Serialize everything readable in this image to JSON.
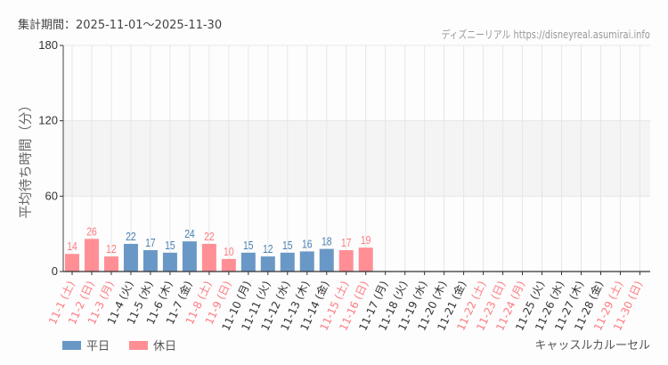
{
  "header": {
    "period": "集計期間：2025-11-01〜2025-11-30",
    "credit": "ディズニーリアル https://disneyreal.asumirai.info"
  },
  "legend": [
    {
      "label": "平日",
      "color": "#6a98c6"
    },
    {
      "label": "休日",
      "color": "#ff8f95"
    }
  ],
  "attraction": "キャッスルカルーセル",
  "colors": {
    "weekday": "#6a98c6",
    "holiday": "#ff8f95",
    "weekday_text": "#4a7fb5",
    "holiday_text": "#ff7a82",
    "band": "#f3f4f3",
    "grid": "#e6e6e6"
  },
  "chart_data": {
    "type": "bar",
    "title": "",
    "xlabel": "",
    "ylabel": "平均待ち時間（分）",
    "ylim": [
      0,
      180
    ],
    "yticks": [
      0,
      60,
      120,
      180
    ],
    "grid": true,
    "legend_position": "bottom-left",
    "categories": [
      "11-1 (土)",
      "11-2 (日)",
      "11-3 (月)",
      "11-4 (火)",
      "11-5 (水)",
      "11-6 (木)",
      "11-7 (金)",
      "11-8 (土)",
      "11-9 (日)",
      "11-10 (月)",
      "11-11 (火)",
      "11-12 (水)",
      "11-13 (木)",
      "11-14 (金)",
      "11-15 (土)",
      "11-16 (日)",
      "11-17 (月)",
      "11-18 (火)",
      "11-19 (水)",
      "11-20 (木)",
      "11-21 (金)",
      "11-22 (土)",
      "11-23 (日)",
      "11-24 (月)",
      "11-25 (火)",
      "11-26 (水)",
      "11-27 (木)",
      "11-28 (金)",
      "11-29 (土)",
      "11-30 (日)"
    ],
    "day_type": [
      "holiday",
      "holiday",
      "holiday",
      "weekday",
      "weekday",
      "weekday",
      "weekday",
      "holiday",
      "holiday",
      "weekday",
      "weekday",
      "weekday",
      "weekday",
      "weekday",
      "holiday",
      "holiday",
      "weekday",
      "weekday",
      "weekday",
      "weekday",
      "weekday",
      "holiday",
      "holiday",
      "holiday",
      "weekday",
      "weekday",
      "weekday",
      "weekday",
      "holiday",
      "holiday"
    ],
    "values": [
      14,
      26,
      12,
      22,
      17,
      15,
      24,
      22,
      10,
      15,
      12,
      15,
      16,
      18,
      17,
      19,
      null,
      null,
      null,
      null,
      null,
      null,
      null,
      null,
      null,
      null,
      null,
      null,
      null,
      null
    ],
    "series": [
      {
        "name": "平日",
        "values": [
          null,
          null,
          null,
          22,
          17,
          15,
          24,
          null,
          null,
          15,
          12,
          15,
          16,
          18,
          null,
          null,
          null,
          null,
          null,
          null,
          null,
          null,
          null,
          null,
          null,
          null,
          null,
          null,
          null,
          null
        ]
      },
      {
        "name": "休日",
        "values": [
          14,
          26,
          12,
          null,
          null,
          null,
          null,
          22,
          10,
          null,
          null,
          null,
          null,
          null,
          17,
          19,
          null,
          null,
          null,
          null,
          null,
          null,
          null,
          null,
          null,
          null,
          null,
          null,
          null,
          null
        ]
      }
    ]
  }
}
